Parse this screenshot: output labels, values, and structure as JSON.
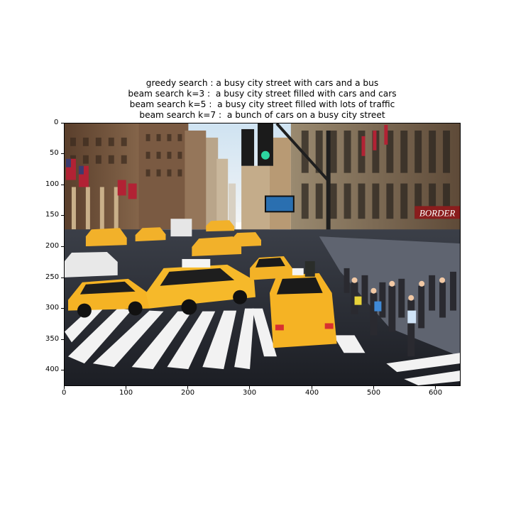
{
  "figure": {
    "captions": [
      "greedy search : a busy city street with cars and a bus",
      "beam search k=3 :  a busy city street filled with cars and cars",
      "beam search k=5 :  a busy city street filled with lots of traffic",
      "beam search k=7 :  a bunch of cars on a busy city street"
    ],
    "x_ticks": [
      "0",
      "100",
      "200",
      "300",
      "400",
      "500",
      "600"
    ],
    "y_ticks": [
      "0",
      "50",
      "100",
      "150",
      "200",
      "250",
      "300",
      "350",
      "400"
    ],
    "image_description_sign": "BORDER"
  }
}
